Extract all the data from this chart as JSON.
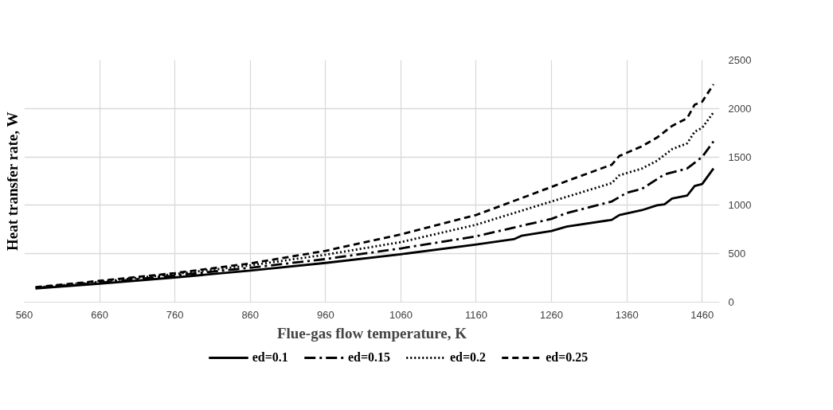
{
  "chart_data": {
    "type": "line",
    "xlabel": "Flue-gas flow temperature, K",
    "ylabel": "Heat transfer rate, W",
    "xlim": [
      560,
      1483
    ],
    "ylim": [
      0,
      2500
    ],
    "xticks": [
      560,
      660,
      760,
      860,
      960,
      1060,
      1160,
      1260,
      1360,
      1460
    ],
    "yticks": [
      0,
      500,
      1000,
      1500,
      2000,
      2500
    ],
    "grid": true,
    "legend": "bottom",
    "series": [
      {
        "name": "ed=0.1",
        "color": "#000000",
        "line_style": "solid",
        "x": [
          575,
          660,
          760,
          860,
          960,
          1060,
          1160,
          1210,
          1220,
          1260,
          1280,
          1340,
          1350,
          1380,
          1400,
          1410,
          1420,
          1440,
          1450,
          1460,
          1475
        ],
        "values": [
          140,
          190,
          255,
          325,
          405,
          495,
          595,
          650,
          685,
          735,
          780,
          850,
          900,
          950,
          1000,
          1010,
          1070,
          1100,
          1200,
          1220,
          1380
        ]
      },
      {
        "name": "ed=0.15",
        "color": "#000000",
        "line_style": "dashdot",
        "x": [
          575,
          660,
          760,
          860,
          960,
          1060,
          1160,
          1260,
          1280,
          1340,
          1360,
          1380,
          1410,
          1440,
          1460,
          1475
        ],
        "values": [
          145,
          200,
          275,
          355,
          445,
          555,
          680,
          860,
          920,
          1040,
          1130,
          1170,
          1320,
          1380,
          1500,
          1660
        ]
      },
      {
        "name": "ed=0.2",
        "color": "#000000",
        "line_style": "dotted",
        "x": [
          575,
          660,
          760,
          860,
          960,
          1060,
          1160,
          1260,
          1340,
          1350,
          1380,
          1400,
          1420,
          1440,
          1450,
          1460,
          1475
        ],
        "values": [
          150,
          210,
          290,
          380,
          490,
          620,
          800,
          1040,
          1230,
          1310,
          1380,
          1460,
          1580,
          1640,
          1760,
          1800,
          1960
        ]
      },
      {
        "name": "ed=0.25",
        "color": "#000000",
        "line_style": "dashed",
        "x": [
          575,
          660,
          760,
          860,
          960,
          1060,
          1160,
          1260,
          1280,
          1340,
          1350,
          1380,
          1400,
          1420,
          1440,
          1450,
          1460,
          1475
        ],
        "values": [
          155,
          220,
          300,
          400,
          530,
          700,
          900,
          1190,
          1250,
          1420,
          1510,
          1610,
          1700,
          1820,
          1900,
          2040,
          2070,
          2250
        ]
      }
    ]
  }
}
